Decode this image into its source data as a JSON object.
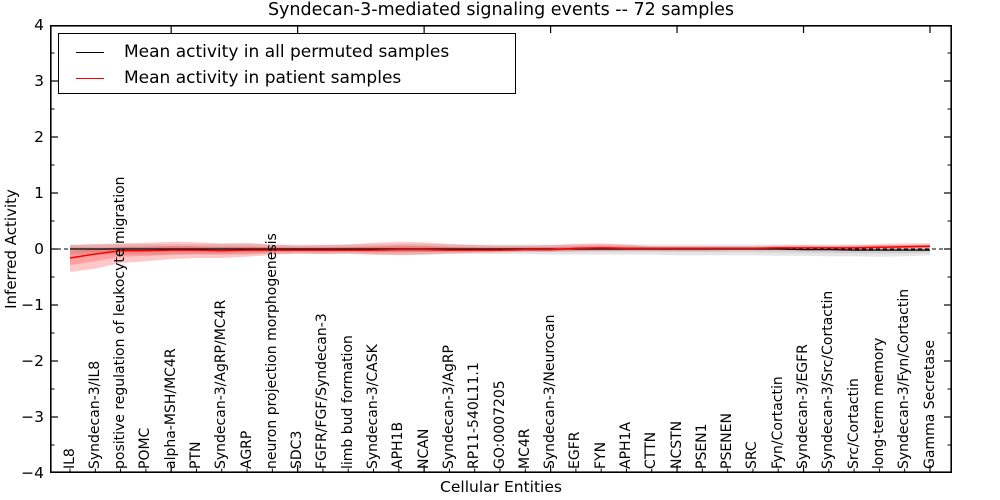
{
  "title": "Syndecan-3-mediated signaling events -- 72 samples",
  "background_color": "#ffffff",
  "chart_data": {
    "type": "line",
    "title": "Syndecan-3-mediated signaling events -- 72 samples",
    "xlabel": "Cellular Entities",
    "ylabel": "Inferred Activity",
    "ylim": [
      -4,
      4
    ],
    "ytick_labels_top_to_bottom": [
      "4",
      "3",
      "2",
      "1",
      "0",
      "−1",
      "−2",
      "−3",
      "−4"
    ],
    "y_minor_tick_step": 0.5,
    "x_major_tick_indices": [
      4,
      9,
      14,
      19,
      24,
      29,
      34
    ],
    "grid": "off",
    "zero_line": {
      "style": "dashed",
      "color": "#000000",
      "y": 0
    },
    "legend": {
      "position": "upper left",
      "entries": [
        {
          "label": "Mean activity in all permuted samples",
          "color": "#000000"
        },
        {
          "label": "Mean activity in patient samples",
          "color": "#ff0000"
        }
      ]
    },
    "categories": [
      "IL8",
      "Syndecan-3/IL8",
      "positive regulation of leukocyte migration",
      "POMC",
      "alpha-MSH/MC4R",
      "PTN",
      "Syndecan-3/AgRP/MC4R",
      "AGRP",
      "neuron projection morphogenesis",
      "SDC3",
      "FGFR/FGF/Syndecan-3",
      "limb bud formation",
      "Syndecan-3/CASK",
      "APH1B",
      "NCAN",
      "Syndecan-3/AgRP",
      "RP11-540L11.1",
      "GO:0007205",
      "MC4R",
      "Syndecan-3/Neurocan",
      "EGFR",
      "FYN",
      "APH1A",
      "CTTN",
      "NCSTN",
      "PSEN1",
      "PSENEN",
      "SRC",
      "Fyn/Cortactin",
      "Syndecan-3/EGFR",
      "Syndecan-3/Src/Cortactin",
      "Src/Cortactin",
      "long-term memory",
      "Syndecan-3/Fyn/Cortactin",
      "Gamma Secretase"
    ],
    "series": [
      {
        "name": "Mean activity in all permuted samples",
        "color": "#000000",
        "band_color": "#000000",
        "band_alpha": 0.1,
        "values": [
          0,
          0,
          0,
          0,
          0,
          0,
          0,
          0,
          0,
          0,
          0,
          0,
          0,
          0,
          0,
          0,
          0,
          0,
          0,
          0,
          0,
          0,
          0,
          0,
          0,
          0,
          0,
          0,
          0,
          -0.01,
          -0.01,
          -0.02,
          -0.02,
          -0.02,
          -0.02
        ],
        "band_upper": [
          0.08,
          0.08,
          0.09,
          0.09,
          0.09,
          0.09,
          0.09,
          0.09,
          0.08,
          0.08,
          0.08,
          0.08,
          0.08,
          0.09,
          0.09,
          0.08,
          0.08,
          0.08,
          0.08,
          0.08,
          0.08,
          0.08,
          0.08,
          0.08,
          0.08,
          0.08,
          0.08,
          0.08,
          0.08,
          0.08,
          0.08,
          0.08,
          0.07,
          0.07,
          0.07
        ],
        "band_lower": [
          -0.1,
          -0.1,
          -0.1,
          -0.1,
          -0.1,
          -0.1,
          -0.1,
          -0.1,
          -0.09,
          -0.09,
          -0.09,
          -0.09,
          -0.1,
          -0.1,
          -0.1,
          -0.09,
          -0.09,
          -0.09,
          -0.09,
          -0.1,
          -0.1,
          -0.1,
          -0.1,
          -0.1,
          -0.11,
          -0.11,
          -0.11,
          -0.11,
          -0.12,
          -0.12,
          -0.13,
          -0.13,
          -0.14,
          -0.13,
          -0.11
        ]
      },
      {
        "name": "Mean activity in patient samples",
        "color": "#ff0000",
        "band_color": "#ff0000",
        "band_alpha": 0.22,
        "values": [
          -0.16,
          -0.09,
          -0.03,
          -0.03,
          -0.02,
          -0.02,
          -0.03,
          -0.02,
          -0.02,
          -0.02,
          -0.02,
          -0.02,
          -0.02,
          -0.01,
          -0.01,
          -0.02,
          -0.02,
          -0.02,
          -0.01,
          -0.01,
          0.01,
          0.02,
          0.01,
          0.01,
          0.01,
          0.01,
          0.01,
          0.01,
          0.02,
          0.02,
          0.02,
          0.02,
          0.03,
          0.04,
          0.05
        ],
        "band_upper": [
          0.07,
          0.09,
          0.1,
          0.11,
          0.13,
          0.12,
          0.1,
          0.11,
          0.08,
          0.06,
          0.07,
          0.08,
          0.11,
          0.13,
          0.12,
          0.09,
          0.07,
          0.06,
          0.06,
          0.07,
          0.09,
          0.1,
          0.08,
          0.05,
          0.05,
          0.05,
          0.05,
          0.05,
          0.06,
          0.07,
          0.06,
          0.07,
          0.09,
          0.1,
          0.1
        ],
        "band_lower": [
          -0.41,
          -0.35,
          -0.25,
          -0.22,
          -0.18,
          -0.16,
          -0.16,
          -0.14,
          -0.1,
          -0.08,
          -0.09,
          -0.08,
          -0.1,
          -0.11,
          -0.1,
          -0.08,
          -0.07,
          -0.06,
          -0.05,
          -0.05,
          -0.04,
          -0.03,
          -0.03,
          -0.03,
          -0.03,
          -0.03,
          -0.02,
          -0.02,
          -0.02,
          -0.02,
          -0.02,
          -0.01,
          0.0,
          0.0,
          0.01
        ]
      }
    ]
  }
}
